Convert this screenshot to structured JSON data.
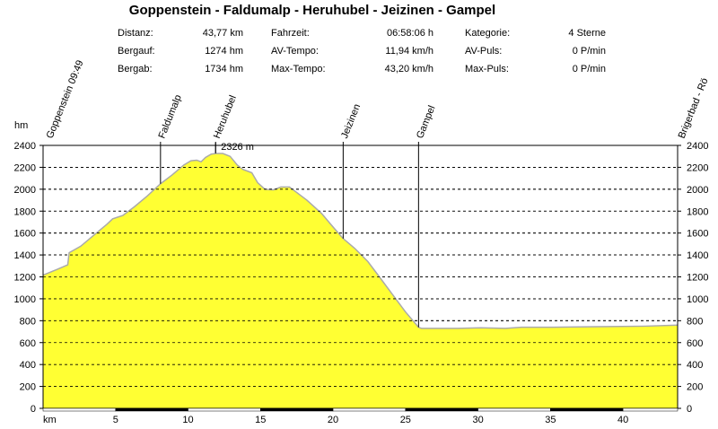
{
  "title": "Goppenstein - Faldumalp - Heruhubel - Jeizinen - Gampel",
  "stats": {
    "distanz_label": "Distanz:",
    "distanz_value": "43,77 km",
    "bergauf_label": "Bergauf:",
    "bergauf_value": "1274 hm",
    "bergab_label": "Bergab:",
    "bergab_value": "1734 hm",
    "fahrzeit_label": "Fahrzeit:",
    "fahrzeit_value": "06:58:06 h",
    "avtempo_label": "AV-Tempo:",
    "avtempo_value": "11,94 km/h",
    "maxtempo_label": "Max-Tempo:",
    "maxtempo_value": "43,20 km/h",
    "kategorie_label": "Kategorie:",
    "kategorie_value": "4 Sterne",
    "avpuls_label": "AV-Puls:",
    "avpuls_value": "0 P/min",
    "maxpuls_label": "Max-Puls:",
    "maxpuls_value": "0 P/min"
  },
  "chart_data": {
    "type": "area",
    "ylabel": "hm",
    "xlabel": "km",
    "xlim": [
      0,
      43.77
    ],
    "ylim": [
      0,
      2400
    ],
    "yticks": [
      0,
      200,
      400,
      600,
      800,
      1000,
      1200,
      1400,
      1600,
      1800,
      2000,
      2200,
      2400
    ],
    "xticks": [
      5,
      10,
      15,
      20,
      25,
      30,
      35,
      40
    ],
    "grid": "horizontal-dashed",
    "fill_color": "#ffff33",
    "line_color": "#aaaaaa",
    "max_label": "2326 m",
    "max_label_color": "#cc0000",
    "max_point": [
      11.9,
      2326
    ],
    "waypoints": [
      {
        "name": "Goppenstein 09:49",
        "km": 0.0,
        "elev": 1216
      },
      {
        "name": "Faldumalp",
        "km": 8.1,
        "elev": 2050
      },
      {
        "name": "Heruhubel",
        "km": 11.9,
        "elev": 2326
      },
      {
        "name": "Jeizinen",
        "km": 20.7,
        "elev": 1550
      },
      {
        "name": "Gampel",
        "km": 25.9,
        "elev": 740
      },
      {
        "name": "Brigerbad - Rö",
        "km": 43.77,
        "elev": 760
      }
    ],
    "x": [
      0,
      1,
      1.7,
      1.8,
      2.6,
      3.5,
      4.4,
      4.8,
      5.5,
      6.3,
      7.2,
      8.1,
      8.9,
      9.7,
      10.2,
      10.6,
      10.9,
      11.2,
      11.6,
      11.9,
      12.4,
      12.9,
      13.4,
      13.8,
      14.4,
      14.8,
      15.3,
      15.9,
      16.4,
      17.0,
      17.3,
      18.2,
      19.2,
      20.1,
      20.7,
      21.5,
      22.4,
      23.2,
      24.1,
      25.0,
      25.9,
      26.1,
      26.6,
      28.6,
      30.2,
      31.9,
      33.0,
      35.1,
      38.3,
      41.5,
      43.77
    ],
    "y": [
      1216,
      1270,
      1310,
      1420,
      1480,
      1580,
      1680,
      1730,
      1760,
      1840,
      1940,
      2050,
      2130,
      2220,
      2260,
      2265,
      2250,
      2290,
      2320,
      2326,
      2326,
      2300,
      2220,
      2180,
      2150,
      2060,
      2000,
      1995,
      2020,
      2020,
      1990,
      1900,
      1780,
      1640,
      1550,
      1460,
      1340,
      1200,
      1040,
      880,
      740,
      730,
      730,
      730,
      735,
      730,
      740,
      740,
      745,
      750,
      760
    ]
  }
}
